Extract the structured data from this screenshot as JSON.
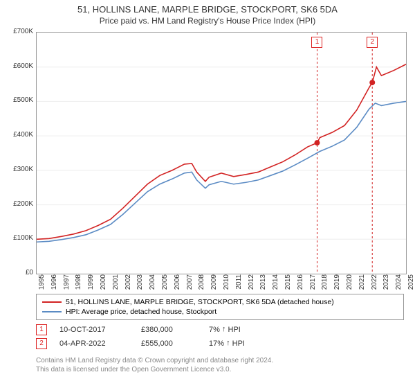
{
  "title": "51, HOLLINS LANE, MARPLE BRIDGE, STOCKPORT, SK6 5DA",
  "subtitle": "Price paid vs. HM Land Registry's House Price Index (HPI)",
  "chart": {
    "type": "line",
    "background_color": "#ffffff",
    "grid_color": "#eeeeee",
    "axis_color": "#999999",
    "ylim": [
      0,
      700000
    ],
    "ytick_step": 100000,
    "yticks": [
      "£0",
      "£100K",
      "£200K",
      "£300K",
      "£400K",
      "£500K",
      "£600K",
      "£700K"
    ],
    "xlim": [
      1995,
      2025
    ],
    "xticks": [
      "1995",
      "1996",
      "1997",
      "1998",
      "1999",
      "2000",
      "2001",
      "2002",
      "2003",
      "2004",
      "2005",
      "2006",
      "2007",
      "2008",
      "2009",
      "2010",
      "2011",
      "2012",
      "2013",
      "2014",
      "2015",
      "2016",
      "2017",
      "2018",
      "2019",
      "2020",
      "2021",
      "2022",
      "2023",
      "2024",
      "2025"
    ],
    "label_fontsize": 10,
    "line_width": 1.6,
    "series": [
      {
        "name": "property",
        "label": "51, HOLLINS LANE, MARPLE BRIDGE, STOCKPORT, SK6 5DA (detached house)",
        "color": "#d22222",
        "points": [
          [
            1995,
            100000
          ],
          [
            1996,
            102000
          ],
          [
            1997,
            108000
          ],
          [
            1998,
            115000
          ],
          [
            1999,
            125000
          ],
          [
            2000,
            140000
          ],
          [
            2001,
            158000
          ],
          [
            2002,
            190000
          ],
          [
            2003,
            225000
          ],
          [
            2004,
            260000
          ],
          [
            2005,
            285000
          ],
          [
            2006,
            300000
          ],
          [
            2007,
            318000
          ],
          [
            2007.6,
            320000
          ],
          [
            2008,
            295000
          ],
          [
            2008.7,
            268000
          ],
          [
            2009,
            280000
          ],
          [
            2010,
            292000
          ],
          [
            2011,
            282000
          ],
          [
            2012,
            288000
          ],
          [
            2013,
            295000
          ],
          [
            2014,
            310000
          ],
          [
            2015,
            325000
          ],
          [
            2016,
            345000
          ],
          [
            2017,
            368000
          ],
          [
            2017.78,
            380000
          ],
          [
            2018,
            395000
          ],
          [
            2019,
            410000
          ],
          [
            2020,
            430000
          ],
          [
            2021,
            475000
          ],
          [
            2022,
            540000
          ],
          [
            2022.26,
            555000
          ],
          [
            2022.6,
            600000
          ],
          [
            2023,
            575000
          ],
          [
            2024,
            590000
          ],
          [
            2025,
            608000
          ]
        ]
      },
      {
        "name": "hpi",
        "label": "HPI: Average price, detached house, Stockport",
        "color": "#5b8bc4",
        "points": [
          [
            1995,
            92000
          ],
          [
            1996,
            94000
          ],
          [
            1997,
            99000
          ],
          [
            1998,
            105000
          ],
          [
            1999,
            113000
          ],
          [
            2000,
            127000
          ],
          [
            2001,
            143000
          ],
          [
            2002,
            172000
          ],
          [
            2003,
            205000
          ],
          [
            2004,
            238000
          ],
          [
            2005,
            260000
          ],
          [
            2006,
            275000
          ],
          [
            2007,
            292000
          ],
          [
            2007.6,
            295000
          ],
          [
            2008,
            272000
          ],
          [
            2008.7,
            248000
          ],
          [
            2009,
            258000
          ],
          [
            2010,
            268000
          ],
          [
            2011,
            260000
          ],
          [
            2012,
            265000
          ],
          [
            2013,
            272000
          ],
          [
            2014,
            285000
          ],
          [
            2015,
            298000
          ],
          [
            2016,
            316000
          ],
          [
            2017,
            335000
          ],
          [
            2018,
            355000
          ],
          [
            2019,
            370000
          ],
          [
            2020,
            388000
          ],
          [
            2021,
            425000
          ],
          [
            2022,
            478000
          ],
          [
            2022.5,
            495000
          ],
          [
            2023,
            488000
          ],
          [
            2024,
            495000
          ],
          [
            2025,
            500000
          ]
        ]
      }
    ],
    "markers": [
      {
        "ref": "1",
        "x": 2017.78,
        "y": 380000
      },
      {
        "ref": "2",
        "x": 2022.26,
        "y": 555000
      }
    ],
    "marker_color": "#d22222",
    "marker_size": 8,
    "ref_line_color": "#d22222"
  },
  "legend": {
    "border_color": "#999999",
    "fontsize": 10.5
  },
  "transactions": [
    {
      "ref": "1",
      "date": "10-OCT-2017",
      "price": "£380,000",
      "pct": "7%",
      "suffix": "HPI"
    },
    {
      "ref": "2",
      "date": "04-APR-2022",
      "price": "£555,000",
      "pct": "17%",
      "suffix": "HPI"
    }
  ],
  "footer_line1": "Contains HM Land Registry data © Crown copyright and database right 2024.",
  "footer_line2": "This data is licensed under the Open Government Licence v3.0."
}
